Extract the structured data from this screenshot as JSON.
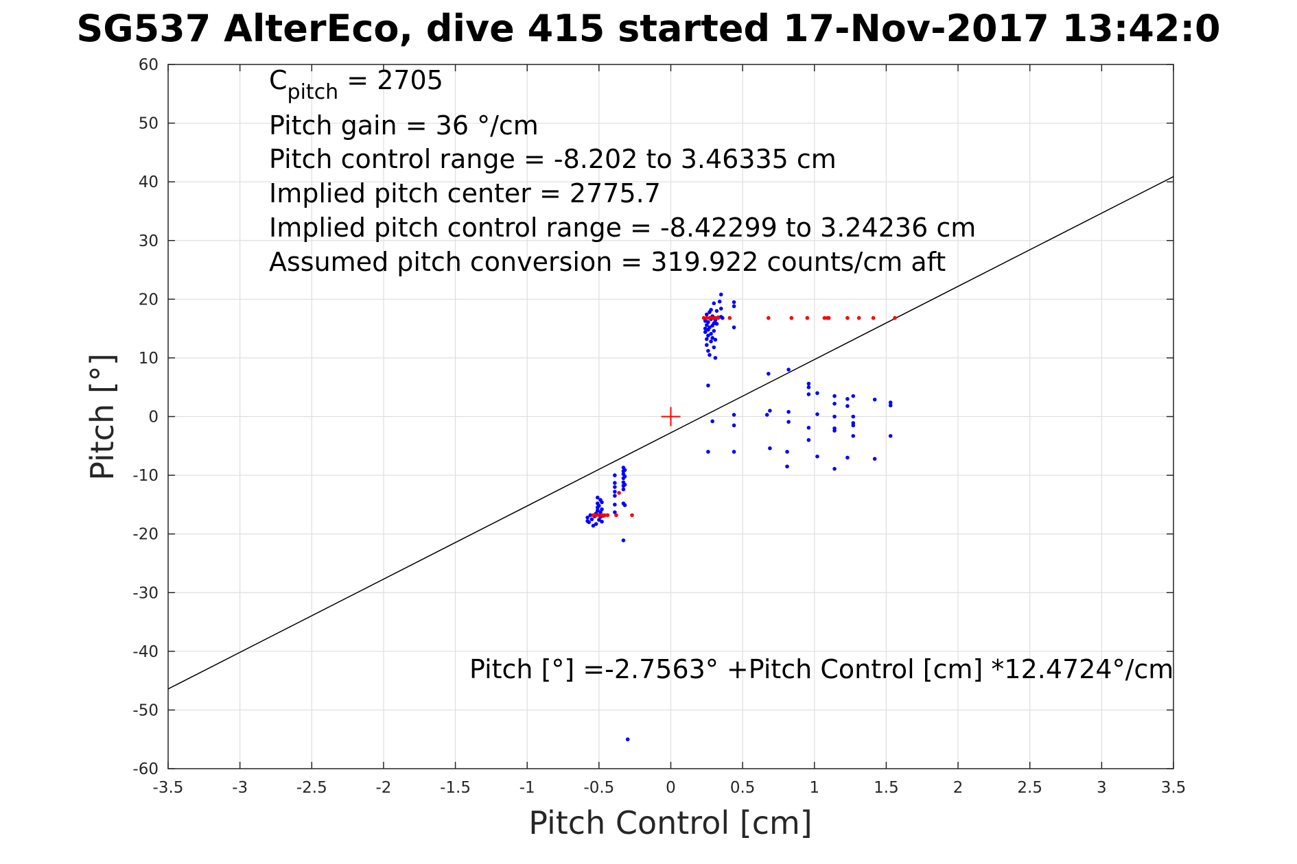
{
  "chart_data": {
    "type": "scatter",
    "title": "SG537 AlterEco, dive 415 started 17-Nov-2017 13:42:0",
    "xlabel": "Pitch Control [cm]",
    "ylabel": "Pitch [°]",
    "xlim": [
      -3.5,
      3.5
    ],
    "ylim": [
      -60,
      60
    ],
    "grid": true,
    "x_ticks": [
      "-3.5",
      "-3",
      "-2.5",
      "-2",
      "-1.5",
      "-1",
      "-0.5",
      "0",
      "0.5",
      "1",
      "1.5",
      "2",
      "2.5",
      "3",
      "3.5"
    ],
    "y_ticks": [
      "60",
      "50",
      "40",
      "30",
      "20",
      "10",
      "0",
      "-10",
      "-20",
      "-30",
      "-40",
      "-50",
      "-60"
    ],
    "annotations": {
      "c_pitch_main": "C",
      "c_pitch_sub": "pitch",
      "c_pitch_value": " = 2705",
      "pitch_gain": "Pitch gain = 36 °/cm",
      "pitch_control_range": "Pitch control range = -8.202 to 3.46335 cm",
      "implied_center": "Implied pitch center = 2775.7",
      "implied_range": "Implied pitch control range = -8.42299 to 3.24236 cm",
      "assumed_conversion": "Assumed pitch conversion = 319.922 counts/cm aft",
      "fit_equation": "Pitch [°] =-2.7563° +Pitch Control [cm] *12.4724°/cm"
    },
    "fit_line": {
      "intercept": -2.7563,
      "slope": 12.4724,
      "color": "#000000"
    },
    "center_marker": {
      "x": 0,
      "y": 0,
      "color": "#ff0000"
    },
    "series": [
      {
        "color": "#0000ff",
        "points": [
          [
            -0.58,
            -17.2
          ],
          [
            -0.58,
            -17.8
          ],
          [
            -0.57,
            -18.0
          ],
          [
            -0.56,
            -16.8
          ],
          [
            -0.55,
            -17.5
          ],
          [
            -0.54,
            -18.6
          ],
          [
            -0.53,
            -17.0
          ],
          [
            -0.52,
            -18.3
          ],
          [
            -0.52,
            -16.5
          ],
          [
            -0.51,
            -15.5
          ],
          [
            -0.51,
            -14.8
          ],
          [
            -0.51,
            -16.0
          ],
          [
            -0.51,
            -13.8
          ],
          [
            -0.5,
            -17.6
          ],
          [
            -0.5,
            -15.2
          ],
          [
            -0.49,
            -14.2
          ],
          [
            -0.49,
            -16.3
          ],
          [
            -0.49,
            -17.1
          ],
          [
            -0.48,
            -15.8
          ],
          [
            -0.48,
            -14.6
          ],
          [
            -0.48,
            -17.9
          ],
          [
            -0.47,
            -16.9
          ],
          [
            -0.39,
            -10.0
          ],
          [
            -0.39,
            -11.3
          ],
          [
            -0.39,
            -12.0
          ],
          [
            -0.39,
            -12.8
          ],
          [
            -0.39,
            -13.5
          ],
          [
            -0.39,
            -15.0
          ],
          [
            -0.39,
            -16.3
          ],
          [
            -0.33,
            -8.7
          ],
          [
            -0.33,
            -9.3
          ],
          [
            -0.33,
            -9.8
          ],
          [
            -0.33,
            -10.5
          ],
          [
            -0.33,
            -11.2
          ],
          [
            -0.33,
            -11.8
          ],
          [
            -0.33,
            -12.4
          ],
          [
            -0.33,
            -14.8
          ],
          [
            -0.32,
            -9.1
          ],
          [
            -0.32,
            -10.2
          ],
          [
            -0.32,
            -11.6
          ],
          [
            -0.32,
            -15.1
          ],
          [
            -0.33,
            -21.1
          ],
          [
            -0.3,
            -55.0
          ],
          [
            0.24,
            15.0
          ],
          [
            0.24,
            14.4
          ],
          [
            0.24,
            16.3
          ],
          [
            0.25,
            13.2
          ],
          [
            0.25,
            15.6
          ],
          [
            0.25,
            17.4
          ],
          [
            0.25,
            12.2
          ],
          [
            0.26,
            14.8
          ],
          [
            0.26,
            16.1
          ],
          [
            0.26,
            11.2
          ],
          [
            0.26,
            13.8
          ],
          [
            0.27,
            15.2
          ],
          [
            0.27,
            17.8
          ],
          [
            0.27,
            10.5
          ],
          [
            0.28,
            14.1
          ],
          [
            0.28,
            16.6
          ],
          [
            0.28,
            18.2
          ],
          [
            0.28,
            12.8
          ],
          [
            0.29,
            15.5
          ],
          [
            0.29,
            13.4
          ],
          [
            0.29,
            17.1
          ],
          [
            0.3,
            15.9
          ],
          [
            0.3,
            11.8
          ],
          [
            0.3,
            19.3
          ],
          [
            0.3,
            14.6
          ],
          [
            0.31,
            16.4
          ],
          [
            0.31,
            13.1
          ],
          [
            0.31,
            10.0
          ],
          [
            0.32,
            18.0
          ],
          [
            0.32,
            15.8
          ],
          [
            0.33,
            16.9
          ],
          [
            0.34,
            19.6
          ],
          [
            0.35,
            20.8
          ],
          [
            0.35,
            18.4
          ],
          [
            0.35,
            17.0
          ],
          [
            0.36,
            16.8
          ],
          [
            0.44,
            19.5
          ],
          [
            0.44,
            18.8
          ],
          [
            0.44,
            15.2
          ],
          [
            0.26,
            5.3
          ],
          [
            0.29,
            -0.8
          ],
          [
            0.26,
            -6.0
          ],
          [
            0.44,
            0.3
          ],
          [
            0.44,
            -1.5
          ],
          [
            0.44,
            -6.0
          ],
          [
            0.67,
            0.3
          ],
          [
            0.68,
            7.3
          ],
          [
            0.69,
            1.0
          ],
          [
            0.69,
            -5.4
          ],
          [
            0.81,
            -6.0
          ],
          [
            0.81,
            -8.5
          ],
          [
            0.82,
            0.8
          ],
          [
            0.82,
            -0.9
          ],
          [
            0.82,
            8.0
          ],
          [
            0.96,
            5.6
          ],
          [
            0.96,
            5.0
          ],
          [
            0.96,
            3.8
          ],
          [
            0.96,
            -1.9
          ],
          [
            0.96,
            -4.0
          ],
          [
            1.02,
            4.0
          ],
          [
            1.02,
            0.4
          ],
          [
            1.02,
            -6.8
          ],
          [
            1.14,
            3.5
          ],
          [
            1.14,
            2.2
          ],
          [
            1.14,
            0.0
          ],
          [
            1.14,
            -2.0
          ],
          [
            1.14,
            -2.4
          ],
          [
            1.14,
            -8.9
          ],
          [
            1.23,
            3.0
          ],
          [
            1.23,
            1.8
          ],
          [
            1.23,
            -7.0
          ],
          [
            1.27,
            3.5
          ],
          [
            1.27,
            0.0
          ],
          [
            1.27,
            -1.1
          ],
          [
            1.27,
            -3.3
          ],
          [
            1.27,
            -1.5
          ],
          [
            1.42,
            2.9
          ],
          [
            1.42,
            -7.2
          ],
          [
            1.53,
            2.4
          ],
          [
            1.53,
            1.9
          ],
          [
            1.53,
            -3.3
          ]
        ]
      },
      {
        "color": "#ff0000",
        "points": [
          [
            -0.54,
            -16.8
          ],
          [
            -0.52,
            -16.8
          ],
          [
            -0.5,
            -16.8
          ],
          [
            -0.48,
            -16.8
          ],
          [
            -0.46,
            -16.8
          ],
          [
            -0.44,
            -16.8
          ],
          [
            -0.38,
            -16.8
          ],
          [
            -0.36,
            -13.0
          ],
          [
            -0.27,
            -16.8
          ],
          [
            0.23,
            16.8
          ],
          [
            0.25,
            16.8
          ],
          [
            0.27,
            16.8
          ],
          [
            0.29,
            16.8
          ],
          [
            0.31,
            16.8
          ],
          [
            0.33,
            16.8
          ],
          [
            0.41,
            16.8
          ],
          [
            0.68,
            16.8
          ],
          [
            0.84,
            16.8
          ],
          [
            0.95,
            16.8
          ],
          [
            1.07,
            16.8
          ],
          [
            1.09,
            16.8
          ],
          [
            1.1,
            16.8
          ],
          [
            1.23,
            16.8
          ],
          [
            1.31,
            16.8
          ],
          [
            1.41,
            16.8
          ],
          [
            1.56,
            16.8
          ]
        ]
      }
    ]
  }
}
